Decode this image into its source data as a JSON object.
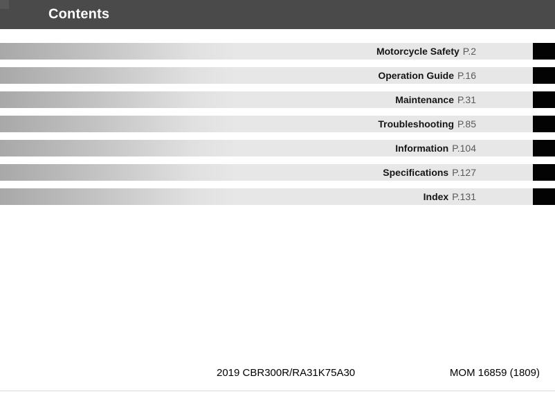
{
  "header": {
    "title": "Contents"
  },
  "toc": {
    "items": [
      {
        "label": "Motorcycle Safety",
        "page": "P.2"
      },
      {
        "label": "Operation Guide",
        "page": "P.16"
      },
      {
        "label": "Maintenance",
        "page": "P.31"
      },
      {
        "label": "Troubleshooting",
        "page": "P.85"
      },
      {
        "label": "Information",
        "page": "P.104"
      },
      {
        "label": "Specifications",
        "page": "P.127"
      },
      {
        "label": "Index",
        "page": "P.131"
      }
    ]
  },
  "footer": {
    "model": "2019 CBR300R/RA31K75A30",
    "code": "MOM 16859 (1809)"
  },
  "colors": {
    "header_bg": "#4a4a4b",
    "bar_gradient_start": "#a8a8a8",
    "bar_gradient_end": "#e7e7e7",
    "chapter_text": "#151515",
    "page_ref_text": "#58595a",
    "tab": "#030303",
    "bottom_rule": "#dadada"
  }
}
